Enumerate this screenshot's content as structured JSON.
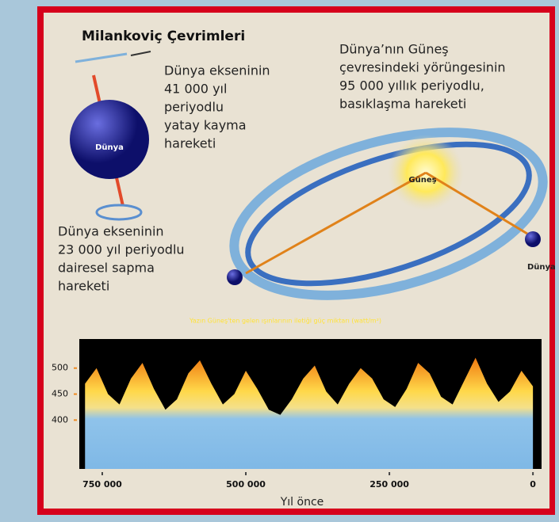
{
  "title": "Milankoviç Çevrimleri",
  "labels": {
    "earth_main": "Dünya",
    "sun": "Güneş",
    "earth_orbit": "Dünya"
  },
  "notes": {
    "tilt": [
      "Dünya ekseninin",
      "41 000 yıl",
      "periyodlu",
      "yatay kayma",
      "hareketi"
    ],
    "orbit": [
      "Dünya’nın Güneş",
      "çevresindeki yörüngesinin",
      "95 000 yıllık periyodlu,",
      "basıklaşma hareketi"
    ],
    "precession": [
      "Dünya ekseninin",
      "23 000 yıl periyodlu",
      "dairesel sapma",
      "hareketi"
    ]
  },
  "chart_data": {
    "type": "area",
    "title": "Yazın Güneş'ten gelen ışınlarının iletiği güç miktarı (watt/m²)",
    "xlabel": "Yıl önce",
    "x": [
      780000,
      760000,
      740000,
      720000,
      700000,
      680000,
      660000,
      640000,
      620000,
      600000,
      580000,
      560000,
      540000,
      520000,
      500000,
      480000,
      460000,
      440000,
      420000,
      400000,
      380000,
      360000,
      340000,
      320000,
      300000,
      280000,
      260000,
      240000,
      220000,
      200000,
      180000,
      160000,
      140000,
      120000,
      100000,
      80000,
      60000,
      40000,
      20000,
      0
    ],
    "values": [
      470,
      500,
      450,
      430,
      480,
      510,
      460,
      420,
      440,
      490,
      515,
      470,
      430,
      450,
      495,
      460,
      420,
      410,
      440,
      480,
      505,
      455,
      430,
      470,
      500,
      480,
      440,
      425,
      460,
      510,
      490,
      445,
      430,
      475,
      520,
      470,
      435,
      455,
      495,
      465
    ],
    "xlim": [
      790000,
      -15000
    ],
    "ylim": [
      306,
      556
    ],
    "xticks": [
      {
        "value": 750000,
        "label": "750 000"
      },
      {
        "value": 500000,
        "label": "500 000"
      },
      {
        "value": 250000,
        "label": "250 000"
      },
      0
    ],
    "yticks": [
      400,
      450,
      500
    ]
  }
}
